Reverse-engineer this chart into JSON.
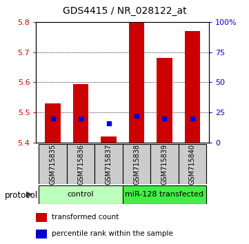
{
  "title": "GDS4415 / NR_028122_at",
  "samples": [
    "GSM715835",
    "GSM715836",
    "GSM715837",
    "GSM715838",
    "GSM715839",
    "GSM715840"
  ],
  "bar_bottoms": [
    5.4,
    5.4,
    5.4,
    5.4,
    5.4,
    5.4
  ],
  "bar_tops": [
    5.53,
    5.595,
    5.42,
    5.8,
    5.68,
    5.77
  ],
  "blue_dots": [
    5.48,
    5.48,
    5.463,
    5.49,
    5.48,
    5.48
  ],
  "bar_color": "#cc0000",
  "dot_color": "#0000cc",
  "ylim_left": [
    5.4,
    5.8
  ],
  "ylim_right": [
    0,
    100
  ],
  "yticks_left": [
    5.4,
    5.5,
    5.6,
    5.7,
    5.8
  ],
  "yticks_right": [
    0,
    25,
    50,
    75,
    100
  ],
  "ytick_labels_right": [
    "0",
    "25",
    "50",
    "75",
    "100%"
  ],
  "group_control_color": "#bbffbb",
  "group_mir_color": "#44ee44",
  "group_control_label": "control",
  "group_mir_label": "miR-128 transfected",
  "protocol_label": "protocol",
  "legend_red_label": "transformed count",
  "legend_blue_label": "percentile rank within the sample",
  "title_fontsize": 10,
  "tick_fontsize": 8,
  "label_fontsize": 7,
  "group_fontsize": 8,
  "legend_fontsize": 7.5,
  "axis_left_color": "#cc0000",
  "axis_right_color": "#0000cc",
  "sample_box_color": "#cccccc",
  "bar_width": 0.55
}
